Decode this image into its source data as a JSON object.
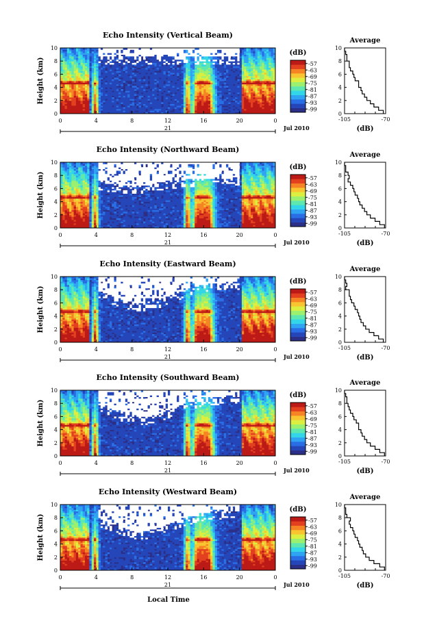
{
  "chart_data": {
    "type": "heatmap",
    "xlabel": "Local Time",
    "x_ticks": [
      "0",
      "4",
      "8",
      "12",
      "16",
      "20",
      "0"
    ],
    "xlim": [
      0,
      24
    ],
    "y_ticks": [
      "0",
      "2",
      "4",
      "6",
      "8",
      "10"
    ],
    "ylim": [
      0,
      10
    ],
    "ylabel": "Height (km)",
    "date_day": "21",
    "date_label": "Jul 2010",
    "colorbar": {
      "unit": "(dB)",
      "ticks": [
        "-57",
        "-63",
        "-69",
        "-75",
        "-81",
        "-87",
        "-93",
        "-99"
      ],
      "range": [
        -102,
        -54
      ],
      "colors": [
        "#2c2f87",
        "#2546b8",
        "#2a6ee6",
        "#2ea4f2",
        "#32d6e8",
        "#5ee8b0",
        "#9cf070",
        "#dcee40",
        "#f8c430",
        "#f68424",
        "#e2401e",
        "#bc1a16"
      ]
    },
    "average_panel": {
      "title": "Average",
      "xlabel": "(dB)",
      "x_ticks": [
        "-105",
        "-70"
      ],
      "xlim": [
        -105,
        -70
      ],
      "y_ticks": [
        "0",
        "2",
        "4",
        "6",
        "8",
        "10"
      ],
      "ylim": [
        0,
        10
      ]
    },
    "panels": [
      {
        "title": "Echo Intensity (Vertical Beam)",
        "profile": {
          "height": [
            0,
            0.5,
            1,
            1.5,
            2,
            2.5,
            3,
            3.5,
            4,
            4.5,
            5,
            5.5,
            6,
            6.5,
            7,
            7.5,
            8,
            8.5,
            9,
            9.5
          ],
          "db": [
            -72,
            -76,
            -80,
            -83,
            -86,
            -88,
            -90,
            -91,
            -93,
            -93,
            -96,
            -97,
            -98,
            -100,
            -101,
            -101,
            -103,
            -103,
            -104,
            -105
          ]
        }
      },
      {
        "title": "Echo Intensity (Northward Beam)",
        "profile": {
          "height": [
            0,
            0.5,
            1,
            1.5,
            2,
            2.5,
            3,
            3.5,
            4,
            4.5,
            5,
            5.5,
            6,
            6.5,
            7,
            7.5,
            8,
            8.5,
            9,
            9.5
          ],
          "db": [
            -71,
            -75,
            -79,
            -83,
            -86,
            -88,
            -90,
            -92,
            -93,
            -94,
            -96,
            -97,
            -98,
            -100,
            -102,
            -101,
            -102,
            -104,
            -104,
            -105
          ]
        }
      },
      {
        "title": "Echo Intensity (Eastward Beam)",
        "profile": {
          "height": [
            0,
            0.5,
            1,
            1.5,
            2,
            2.5,
            3,
            3.5,
            4,
            4.5,
            5,
            5.5,
            6,
            6.5,
            7,
            7.5,
            8,
            8.5,
            9,
            9.5
          ],
          "db": [
            -72,
            -76,
            -80,
            -84,
            -87,
            -89,
            -91,
            -92,
            -93,
            -94,
            -96,
            -97,
            -99,
            -100,
            -101,
            -101,
            -104,
            -103,
            -104,
            -105
          ]
        }
      },
      {
        "title": "Echo Intensity (Southward Beam)",
        "profile": {
          "height": [
            0,
            0.5,
            1,
            1.5,
            2,
            2.5,
            3,
            3.5,
            4,
            4.5,
            5,
            5.5,
            6,
            6.5,
            7,
            7.5,
            8,
            8.5,
            9,
            9.5
          ],
          "db": [
            -71,
            -75,
            -79,
            -83,
            -86,
            -88,
            -90,
            -91,
            -93,
            -93,
            -95,
            -97,
            -98,
            -100,
            -101,
            -102,
            -103,
            -103,
            -104,
            -105
          ]
        }
      },
      {
        "title": "Echo Intensity (Westward Beam)",
        "profile": {
          "height": [
            0,
            0.5,
            1,
            1.5,
            2,
            2.5,
            3,
            3.5,
            4,
            4.5,
            5,
            5.5,
            6,
            6.5,
            7,
            7.5,
            8,
            8.5,
            9,
            9.5
          ],
          "db": [
            -71,
            -75,
            -80,
            -84,
            -87,
            -89,
            -90,
            -92,
            -93,
            -94,
            -96,
            -97,
            -98,
            -100,
            -101,
            -100,
            -103,
            -104,
            -104,
            -105
          ]
        }
      }
    ]
  }
}
